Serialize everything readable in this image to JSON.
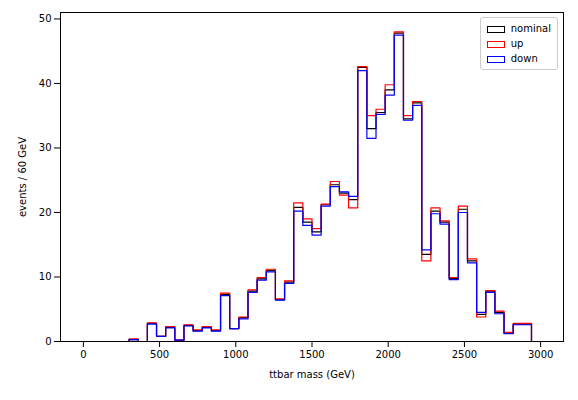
{
  "chart_data": {
    "type": "histogram",
    "x_label": "ttbar mass (GeV)",
    "y_label": "events / 60 GeV",
    "bins": [
      0,
      60,
      120,
      180,
      240,
      300,
      360,
      420,
      480,
      540,
      600,
      660,
      720,
      780,
      840,
      900,
      960,
      1020,
      1080,
      1140,
      1200,
      1260,
      1320,
      1380,
      1440,
      1500,
      1560,
      1620,
      1680,
      1740,
      1800,
      1860,
      1920,
      1980,
      2040,
      2100,
      2160,
      2220,
      2280,
      2340,
      2400,
      2460,
      2520,
      2580,
      2640,
      2700,
      2760,
      2820,
      2880,
      2940,
      3000
    ],
    "series": [
      {
        "name": "nominal",
        "color": "#000000",
        "values": [
          0,
          0,
          0,
          0,
          0,
          0.3,
          0,
          2.8,
          0.8,
          2.2,
          0.2,
          2.5,
          1.7,
          2.2,
          1.7,
          7.3,
          2.0,
          3.7,
          7.8,
          9.7,
          11.0,
          6.5,
          9.2,
          20.8,
          18.5,
          17.0,
          21.2,
          24.3,
          23.0,
          22.0,
          42.5,
          33.0,
          35.5,
          39.0,
          47.8,
          34.5,
          37.0,
          13.5,
          20.2,
          18.5,
          9.8,
          20.5,
          12.5,
          4.2,
          7.8,
          4.5,
          1.3,
          2.7,
          2.7,
          0
        ]
      },
      {
        "name": "up",
        "color": "#ff0000",
        "values": [
          0,
          0,
          0,
          0,
          0,
          0.4,
          0,
          2.9,
          0.8,
          2.3,
          0.2,
          2.6,
          1.8,
          2.3,
          1.8,
          7.5,
          2.0,
          3.8,
          8.0,
          9.9,
          11.2,
          6.6,
          9.4,
          21.5,
          19.0,
          17.5,
          21.3,
          24.8,
          22.7,
          20.7,
          42.6,
          35.0,
          36.0,
          39.8,
          48.0,
          35.0,
          37.2,
          12.5,
          20.7,
          18.7,
          9.9,
          21.0,
          12.8,
          3.8,
          7.9,
          4.7,
          1.4,
          2.8,
          2.8,
          0
        ]
      },
      {
        "name": "down",
        "color": "#0000ff",
        "values": [
          0,
          0,
          0,
          0,
          0,
          0.3,
          0,
          2.7,
          0.8,
          2.1,
          0.2,
          2.4,
          1.6,
          2.1,
          1.6,
          7.1,
          2.0,
          3.5,
          7.6,
          9.5,
          10.8,
          6.4,
          9.0,
          20.2,
          18.0,
          16.5,
          21.0,
          24.0,
          23.2,
          22.5,
          42.0,
          31.5,
          35.2,
          38.2,
          47.5,
          34.3,
          36.6,
          14.2,
          19.8,
          18.2,
          9.6,
          20.0,
          12.2,
          4.5,
          7.6,
          4.3,
          1.2,
          2.6,
          2.6,
          0
        ]
      }
    ],
    "xlim": [
      -150,
      3150
    ],
    "xticks": [
      0,
      500,
      1000,
      1500,
      2000,
      2500,
      3000
    ],
    "ylim": [
      0,
      51
    ],
    "yticks": [
      0,
      10,
      20,
      30,
      40,
      50
    ],
    "legend": "upper right"
  }
}
